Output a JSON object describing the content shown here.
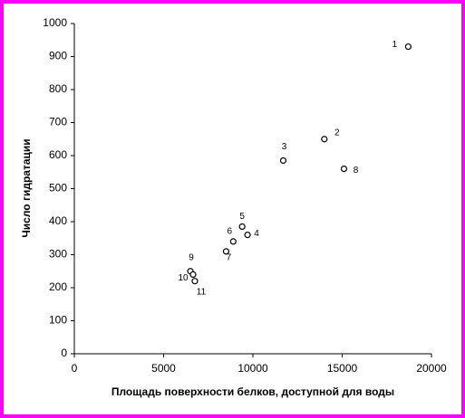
{
  "chart_data": {
    "type": "scatter",
    "x_label": "Площадь поверхности белков, доступной для воды",
    "y_label": "Число гидратации",
    "labels": [
      "1",
      "2",
      "3",
      "4",
      "5",
      "6",
      "7",
      "8",
      "9",
      "10",
      "11"
    ],
    "x": [
      18700,
      14000,
      11700,
      9700,
      9400,
      8900,
      8500,
      15100,
      6500,
      6650,
      6750
    ],
    "y": [
      930,
      650,
      585,
      360,
      385,
      340,
      310,
      560,
      250,
      240,
      220
    ],
    "color": "#000000",
    "xlim": [
      0,
      20000
    ],
    "xticks": [
      0,
      5000,
      10000,
      15000,
      20000
    ],
    "ylim": [
      0,
      1000
    ],
    "yticks": [
      0,
      100,
      200,
      300,
      400,
      500,
      600,
      700,
      800,
      900,
      1000
    ],
    "grid": false
  }
}
